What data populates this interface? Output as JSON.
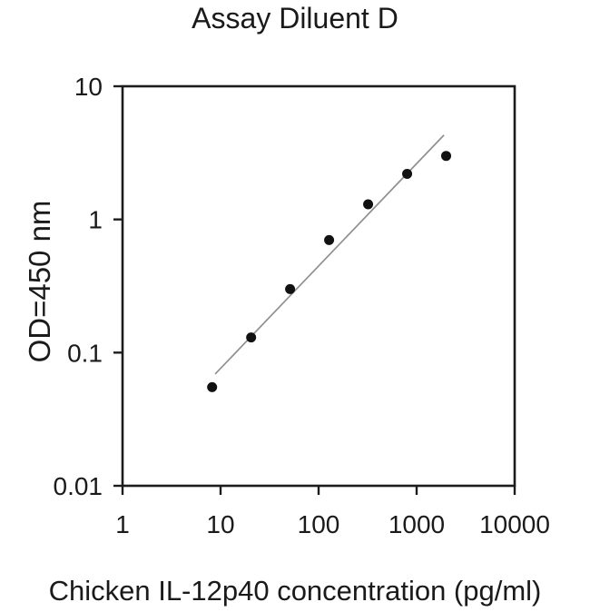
{
  "figure": {
    "title": "Assay Diluent D",
    "x_axis_label": "Chicken IL-12p40 concentration (pg/ml)",
    "y_axis_label": "OD=450 nm"
  },
  "colors": {
    "background": "#ffffff",
    "axis": "#1c1c1c",
    "text": "#1a1a1a",
    "marker": "#111111",
    "trend_line": "#8f8f8f"
  },
  "chart_data": {
    "type": "scatter",
    "title": "Assay Diluent D",
    "xlabel": "Chicken IL-12p40 concentration (pg/ml)",
    "ylabel": "OD=450 nm",
    "x_scale": "log",
    "y_scale": "log",
    "xlim": [
      1,
      10000
    ],
    "ylim": [
      0.01,
      10
    ],
    "x_ticks": [
      1,
      10,
      100,
      1000,
      10000
    ],
    "x_tick_labels": [
      "1",
      "10",
      "100",
      "1000",
      "10000"
    ],
    "y_ticks": [
      10,
      1,
      0.1,
      0.01
    ],
    "y_tick_labels": [
      "10",
      "1",
      "0.1",
      "0.01"
    ],
    "grid": false,
    "legend_position": "none",
    "series": [
      {
        "name": "standard-curve-points",
        "type": "scatter",
        "marker": "filled-circle",
        "color": "#111111",
        "x": [
          8.2,
          20.5,
          51.2,
          128,
          320,
          800,
          2000
        ],
        "y": [
          0.055,
          0.13,
          0.3,
          0.7,
          1.3,
          2.2,
          3.0
        ]
      },
      {
        "name": "linear-fit-line",
        "type": "line",
        "color": "#8f8f8f",
        "x": [
          8.8,
          1900
        ],
        "y": [
          0.069,
          4.3
        ]
      }
    ]
  }
}
